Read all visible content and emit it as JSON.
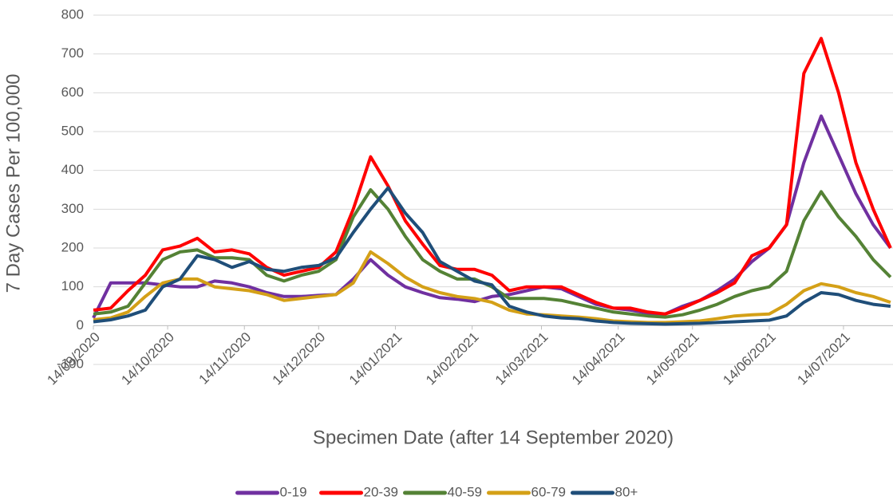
{
  "chart_data": {
    "type": "line",
    "ylabel": "7 Day Cases Per 100,000",
    "xlabel": "Specimen Date (after 14 September 2020)",
    "x": [
      "14/09/2020",
      "21/09/2020",
      "28/09/2020",
      "05/10/2020",
      "12/10/2020",
      "19/10/2020",
      "26/10/2020",
      "02/11/2020",
      "09/11/2020",
      "16/11/2020",
      "23/11/2020",
      "30/11/2020",
      "07/12/2020",
      "14/12/2020",
      "21/12/2020",
      "28/12/2020",
      "04/01/2021",
      "11/01/2021",
      "18/01/2021",
      "25/01/2021",
      "01/02/2021",
      "08/02/2021",
      "15/02/2021",
      "22/02/2021",
      "01/03/2021",
      "08/03/2021",
      "15/03/2021",
      "22/03/2021",
      "29/03/2021",
      "05/04/2021",
      "12/04/2021",
      "19/04/2021",
      "26/04/2021",
      "03/05/2021",
      "10/05/2021",
      "17/05/2021",
      "24/05/2021",
      "31/05/2021",
      "07/06/2021",
      "14/06/2021",
      "21/06/2021",
      "28/06/2021",
      "05/07/2021",
      "12/07/2021",
      "19/07/2021",
      "26/07/2021",
      "02/08/2021"
    ],
    "xlim": [
      "14/09/2020",
      "03/08/2021"
    ],
    "xticks": [
      "14/09/2020",
      "14/10/2020",
      "14/11/2020",
      "14/12/2020",
      "14/01/2021",
      "14/02/2021",
      "14/03/2021",
      "14/04/2021",
      "14/05/2021",
      "14/06/2021",
      "14/07/2021"
    ],
    "ylim": [
      -100,
      800
    ],
    "yticks": [
      -100,
      0,
      100,
      200,
      300,
      400,
      500,
      600,
      700,
      800
    ],
    "grid": true,
    "legend": "bottom",
    "series": [
      {
        "name": "0-19",
        "color": "#7030a0",
        "values": [
          20,
          110,
          110,
          110,
          105,
          100,
          100,
          115,
          110,
          100,
          85,
          75,
          75,
          78,
          80,
          120,
          170,
          130,
          100,
          85,
          72,
          68,
          62,
          75,
          80,
          90,
          100,
          95,
          75,
          55,
          45,
          40,
          32,
          30,
          50,
          65,
          90,
          120,
          165,
          200,
          260,
          420,
          540,
          440,
          340,
          260,
          200
        ]
      },
      {
        "name": "20-39",
        "color": "#ff0000",
        "values": [
          40,
          45,
          90,
          130,
          195,
          205,
          225,
          190,
          195,
          185,
          150,
          130,
          140,
          150,
          190,
          300,
          435,
          360,
          270,
          210,
          155,
          145,
          145,
          130,
          90,
          100,
          100,
          100,
          80,
          60,
          45,
          45,
          35,
          30,
          45,
          65,
          85,
          110,
          180,
          200,
          260,
          650,
          740,
          600,
          420,
          300,
          200
        ]
      },
      {
        "name": "40-59",
        "color": "#548235",
        "values": [
          30,
          35,
          50,
          110,
          170,
          190,
          195,
          175,
          175,
          170,
          130,
          115,
          130,
          140,
          170,
          280,
          350,
          300,
          230,
          170,
          140,
          120,
          120,
          100,
          70,
          70,
          70,
          65,
          55,
          45,
          35,
          30,
          25,
          22,
          28,
          40,
          55,
          75,
          90,
          100,
          140,
          270,
          345,
          280,
          230,
          170,
          125
        ]
      },
      {
        "name": "60-79",
        "color": "#d4a017",
        "values": [
          15,
          20,
          35,
          75,
          110,
          120,
          120,
          100,
          95,
          90,
          80,
          65,
          70,
          75,
          80,
          110,
          190,
          160,
          125,
          100,
          85,
          75,
          70,
          60,
          40,
          30,
          28,
          25,
          22,
          18,
          12,
          10,
          8,
          8,
          10,
          12,
          18,
          25,
          28,
          30,
          55,
          90,
          108,
          100,
          85,
          75,
          60
        ]
      },
      {
        "name": "80+",
        "color": "#1f4e79",
        "values": [
          10,
          15,
          25,
          40,
          100,
          120,
          180,
          170,
          150,
          165,
          145,
          140,
          150,
          155,
          175,
          240,
          300,
          355,
          290,
          240,
          165,
          140,
          115,
          105,
          50,
          35,
          25,
          20,
          18,
          12,
          8,
          6,
          5,
          4,
          5,
          6,
          8,
          10,
          12,
          14,
          25,
          60,
          85,
          80,
          65,
          55,
          50
        ]
      }
    ]
  }
}
